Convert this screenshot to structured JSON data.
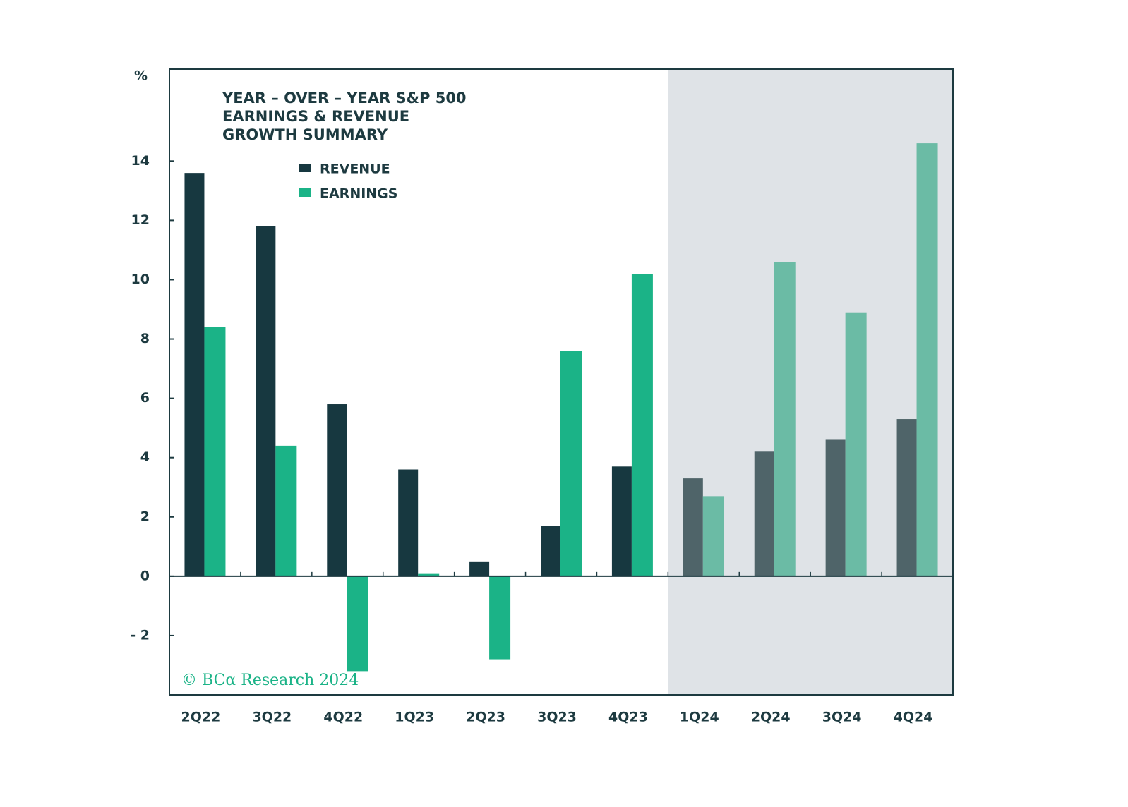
{
  "chart_data": {
    "type": "bar",
    "title_lines": [
      "YEAR – OVER – YEAR  S&P 500",
      "EARNINGS & REVENUE",
      "GROWTH SUMMARY"
    ],
    "y_unit_label": "%",
    "annotation": "© BCα Research 2024",
    "categories": [
      "2Q22",
      "3Q22",
      "4Q22",
      "1Q23",
      "2Q23",
      "3Q23",
      "4Q23",
      "1Q24",
      "2Q24",
      "3Q24",
      "4Q24"
    ],
    "series": [
      {
        "name": "REVENUE",
        "color": "#173840",
        "shaded_color": "#4f6469",
        "values": [
          13.6,
          11.8,
          5.8,
          3.6,
          0.5,
          1.7,
          3.7,
          3.3,
          4.2,
          4.6,
          5.3
        ]
      },
      {
        "name": "EARNINGS",
        "color": "#1bb387",
        "shaded_color": "#6bbba5",
        "values": [
          8.4,
          4.4,
          -3.2,
          0.1,
          -2.8,
          7.6,
          10.2,
          2.7,
          10.6,
          8.9,
          14.6
        ]
      }
    ],
    "shaded_from": "1Q24",
    "shade_color": "#dfe3e7",
    "ylim": [
      -4,
      17.1
    ],
    "yticks": [
      {
        "value": -2,
        "label": "- 2"
      },
      0,
      2,
      4,
      6,
      8,
      10,
      12,
      14
    ],
    "grid": false
  }
}
